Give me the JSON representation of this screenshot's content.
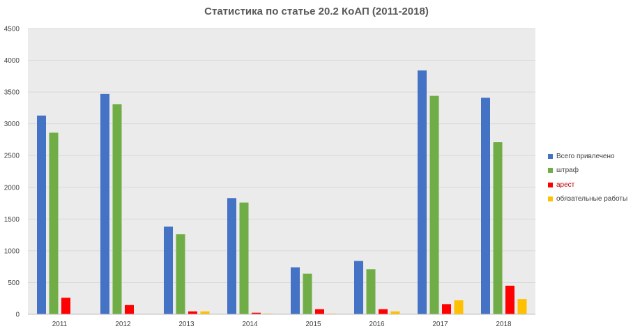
{
  "chart_data": {
    "type": "bar",
    "title": "Статистика по статье 20.2 КоАП (2011-2018)",
    "categories": [
      "2011",
      "2012",
      "2013",
      "2014",
      "2015",
      "2016",
      "2017",
      "2018"
    ],
    "series": [
      {
        "name": "Всего привлечено",
        "color": "#4472c4",
        "values": [
          3130,
          3470,
          1380,
          1830,
          740,
          840,
          3840,
          3410
        ]
      },
      {
        "name": "штраф",
        "color": "#70ad47",
        "values": [
          2860,
          3310,
          1260,
          1760,
          640,
          710,
          3440,
          2710
        ]
      },
      {
        "name": "арест",
        "color": "#ff0000",
        "values": [
          260,
          145,
          45,
          25,
          80,
          80,
          160,
          450
        ]
      },
      {
        "name": "обязательные работы",
        "color": "#ffc000",
        "values": [
          0,
          0,
          45,
          10,
          10,
          45,
          220,
          240
        ]
      }
    ],
    "yticks": [
      "0",
      "500",
      "1000",
      "1500",
      "2000",
      "2500",
      "3000",
      "3500",
      "4000",
      "4500"
    ],
    "ylim": [
      0,
      4500
    ],
    "grid": true,
    "legend_position": "right",
    "plot_background": "#ebebeb"
  }
}
